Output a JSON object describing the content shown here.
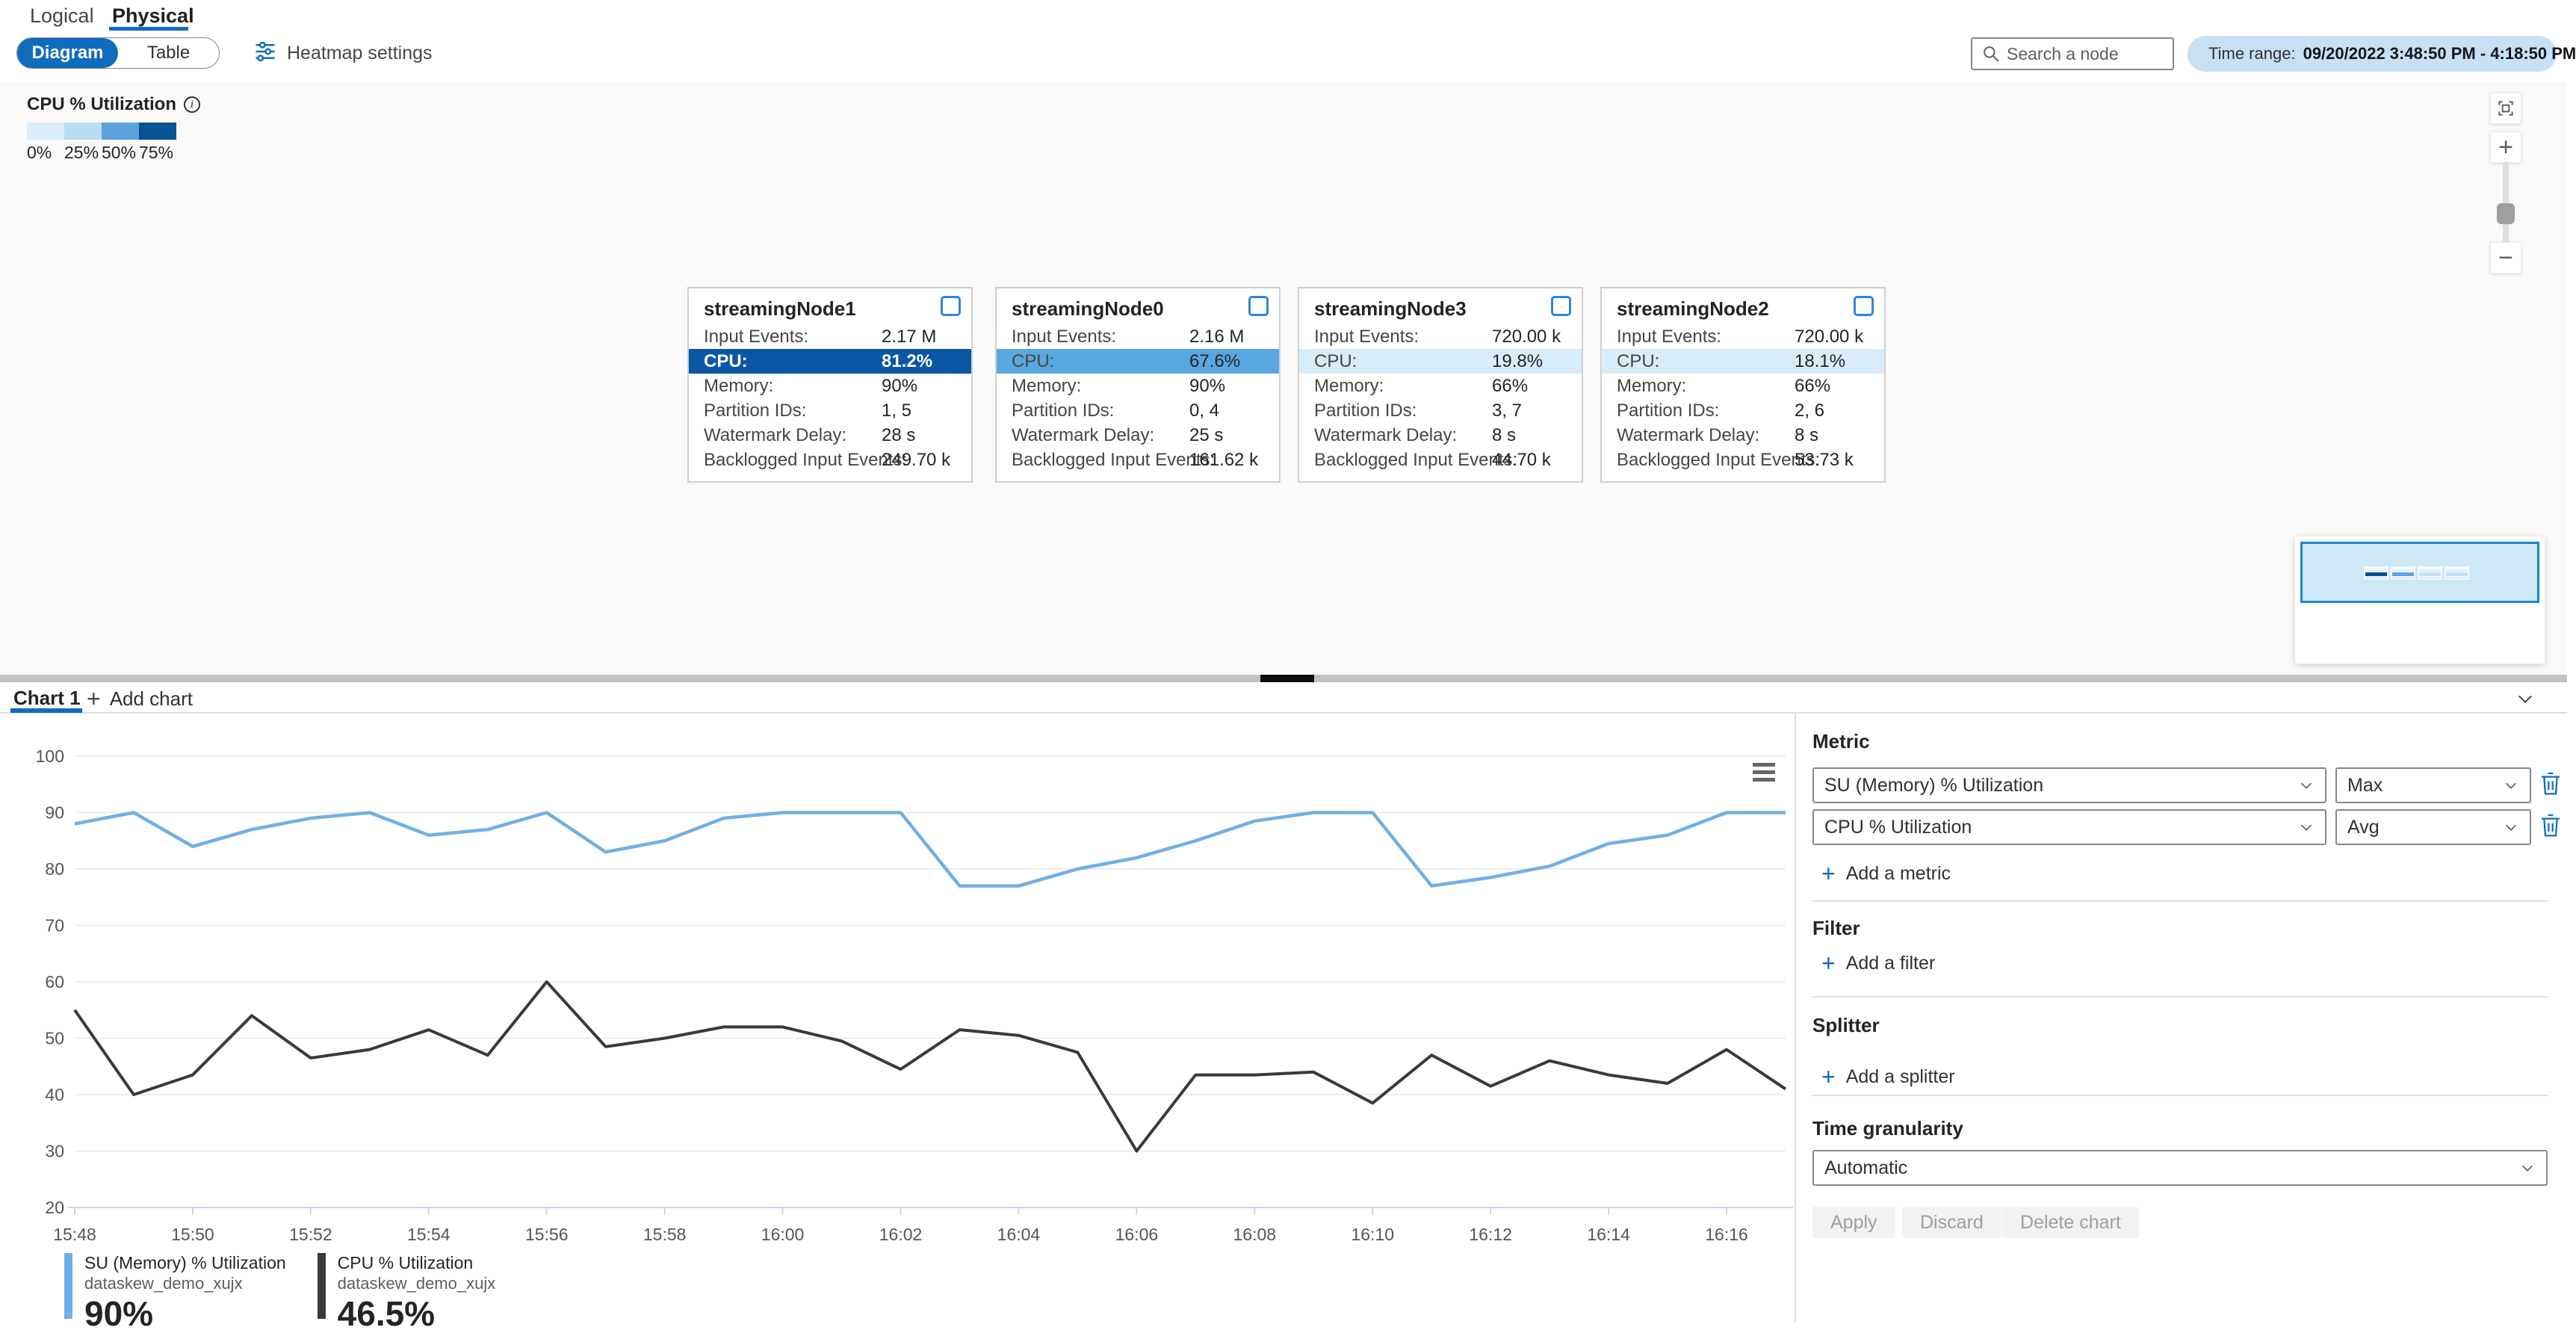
{
  "header": {
    "tabs": {
      "logical": "Logical",
      "physical": "Physical"
    },
    "view_toggle": {
      "diagram": "Diagram",
      "table": "Table"
    },
    "heatmap_settings": "Heatmap settings",
    "search_placeholder": "Search a node",
    "time_range": {
      "label": "Time range:",
      "value": "09/20/2022 3:48:50 PM - 4:18:50 PM"
    },
    "accent_color": "#0f6cbd"
  },
  "heatmap_legend": {
    "title": "CPU % Utilization",
    "stops": [
      {
        "label": "0%",
        "color": "#ddedf9"
      },
      {
        "label": "25%",
        "color": "#b9dcf5"
      },
      {
        "label": "50%",
        "color": "#5ca3dd"
      },
      {
        "label": "75%",
        "color": "#0a5196"
      }
    ]
  },
  "node_row_labels": [
    "Input Events:",
    "CPU:",
    "Memory:",
    "Partition IDs:",
    "Watermark Delay:",
    "Backlogged Input Events:"
  ],
  "nodes": [
    {
      "name": "streamingNode1",
      "input_events": "2.17 M",
      "cpu": "81.2%",
      "memory": "90%",
      "partition_ids": "1, 5",
      "watermark_delay": "28 s",
      "backlogged": "249.70 k",
      "cpu_heat_color": "#0b57a3"
    },
    {
      "name": "streamingNode0",
      "input_events": "2.16 M",
      "cpu": "67.6%",
      "memory": "90%",
      "partition_ids": "0, 4",
      "watermark_delay": "25 s",
      "backlogged": "161.62 k",
      "cpu_heat_color": "#59a7e0"
    },
    {
      "name": "streamingNode3",
      "input_events": "720.00 k",
      "cpu": "19.8%",
      "memory": "66%",
      "partition_ids": "3, 7",
      "watermark_delay": "8 s",
      "backlogged": "44.70 k",
      "cpu_heat_color": "#d9ecfa"
    },
    {
      "name": "streamingNode2",
      "input_events": "720.00 k",
      "cpu": "18.1%",
      "memory": "66%",
      "partition_ids": "2, 6",
      "watermark_delay": "8 s",
      "backlogged": "53.73 k",
      "cpu_heat_color": "#d9ecfa"
    }
  ],
  "chart_tabs": {
    "active": "Chart 1",
    "add": "Add chart"
  },
  "chart_data": {
    "type": "line",
    "x": [
      "15:48",
      "15:49",
      "15:50",
      "15:51",
      "15:52",
      "15:53",
      "15:54",
      "15:55",
      "15:56",
      "15:57",
      "15:58",
      "15:59",
      "16:00",
      "16:01",
      "16:02",
      "16:03",
      "16:04",
      "16:05",
      "16:06",
      "16:07",
      "16:08",
      "16:09",
      "16:10",
      "16:11",
      "16:12",
      "16:13",
      "16:14",
      "16:15",
      "16:16",
      "16:17"
    ],
    "x_tick_labels": [
      "15:48",
      "15:50",
      "15:52",
      "15:54",
      "15:56",
      "15:58",
      "16:00",
      "16:02",
      "16:04",
      "16:06",
      "16:08",
      "16:10",
      "16:12",
      "16:14",
      "16:16"
    ],
    "series": [
      {
        "name": "SU (Memory) % Utilization",
        "aggregation": "Max",
        "color": "#6fb0e6",
        "values": [
          88,
          90,
          84,
          87,
          89,
          90,
          86,
          87,
          90,
          83,
          85,
          89,
          90,
          90,
          90,
          77,
          77,
          80,
          82,
          85,
          88.5,
          90,
          90,
          77,
          78.5,
          80.5,
          84.5,
          86,
          90,
          90
        ]
      },
      {
        "name": "CPU % Utilization",
        "aggregation": "Avg",
        "color": "#3b3a39",
        "values": [
          55,
          40,
          43.5,
          54,
          46.5,
          48,
          51.5,
          47,
          60,
          48.5,
          50,
          52,
          52,
          49.5,
          44.5,
          51.5,
          50.5,
          47.5,
          30,
          43.5,
          43.5,
          44,
          38.5,
          47,
          41.5,
          46,
          43.5,
          42,
          48,
          41
        ]
      }
    ],
    "ylim": [
      20,
      100
    ],
    "yticks": [
      20,
      30,
      40,
      50,
      60,
      70,
      80,
      90,
      100
    ],
    "grid": true,
    "legend_position": "bottom",
    "legend": [
      {
        "name": "SU (Memory) % Utilization",
        "scope": "dataskew_demo_xujx",
        "value": "90%",
        "color": "#6fb0e6"
      },
      {
        "name": "CPU % Utilization",
        "scope": "dataskew_demo_xujx",
        "value": "46.5%",
        "color": "#3b3a39"
      }
    ]
  },
  "panel": {
    "metric_heading": "Metric",
    "metrics": [
      {
        "metric": "SU (Memory) % Utilization",
        "aggregation": "Max"
      },
      {
        "metric": "CPU % Utilization",
        "aggregation": "Avg"
      }
    ],
    "add_metric": "Add a metric",
    "filter_heading": "Filter",
    "add_filter": "Add a filter",
    "splitter_heading": "Splitter",
    "add_splitter": "Add a splitter",
    "time_granularity_heading": "Time granularity",
    "time_granularity_value": "Automatic",
    "buttons": {
      "apply": "Apply",
      "discard": "Discard",
      "delete": "Delete chart"
    }
  }
}
